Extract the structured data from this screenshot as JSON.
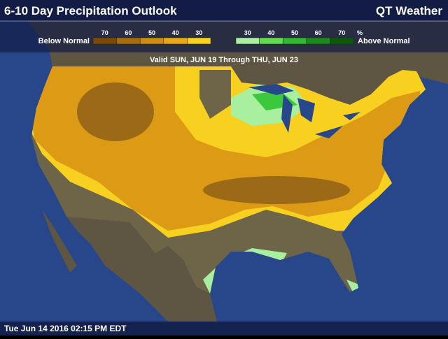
{
  "header": {
    "title": "6-10 Day Precipitation Outlook",
    "brand": "QT Weather"
  },
  "legend": {
    "below_label": "Below Normal",
    "above_label": "Above Normal",
    "unit": "%",
    "below_steps": [
      {
        "value": 70,
        "color": "#7a4a00"
      },
      {
        "value": 60,
        "color": "#a86c0a"
      },
      {
        "value": 50,
        "color": "#d08c10"
      },
      {
        "value": 40,
        "color": "#eaa61a"
      },
      {
        "value": 30,
        "color": "#f8d020"
      }
    ],
    "above_steps": [
      {
        "value": 30,
        "color": "#a8f0a0"
      },
      {
        "value": 40,
        "color": "#60dc50"
      },
      {
        "value": 50,
        "color": "#30b830"
      },
      {
        "value": 60,
        "color": "#1a8a1a"
      },
      {
        "value": 70,
        "color": "#0a5a0a"
      }
    ]
  },
  "valid": "Valid SUN, JUN 19 Through THU, JUN 23",
  "timestamp": "Tue Jun 14 2016 02:15 PM EDT"
}
